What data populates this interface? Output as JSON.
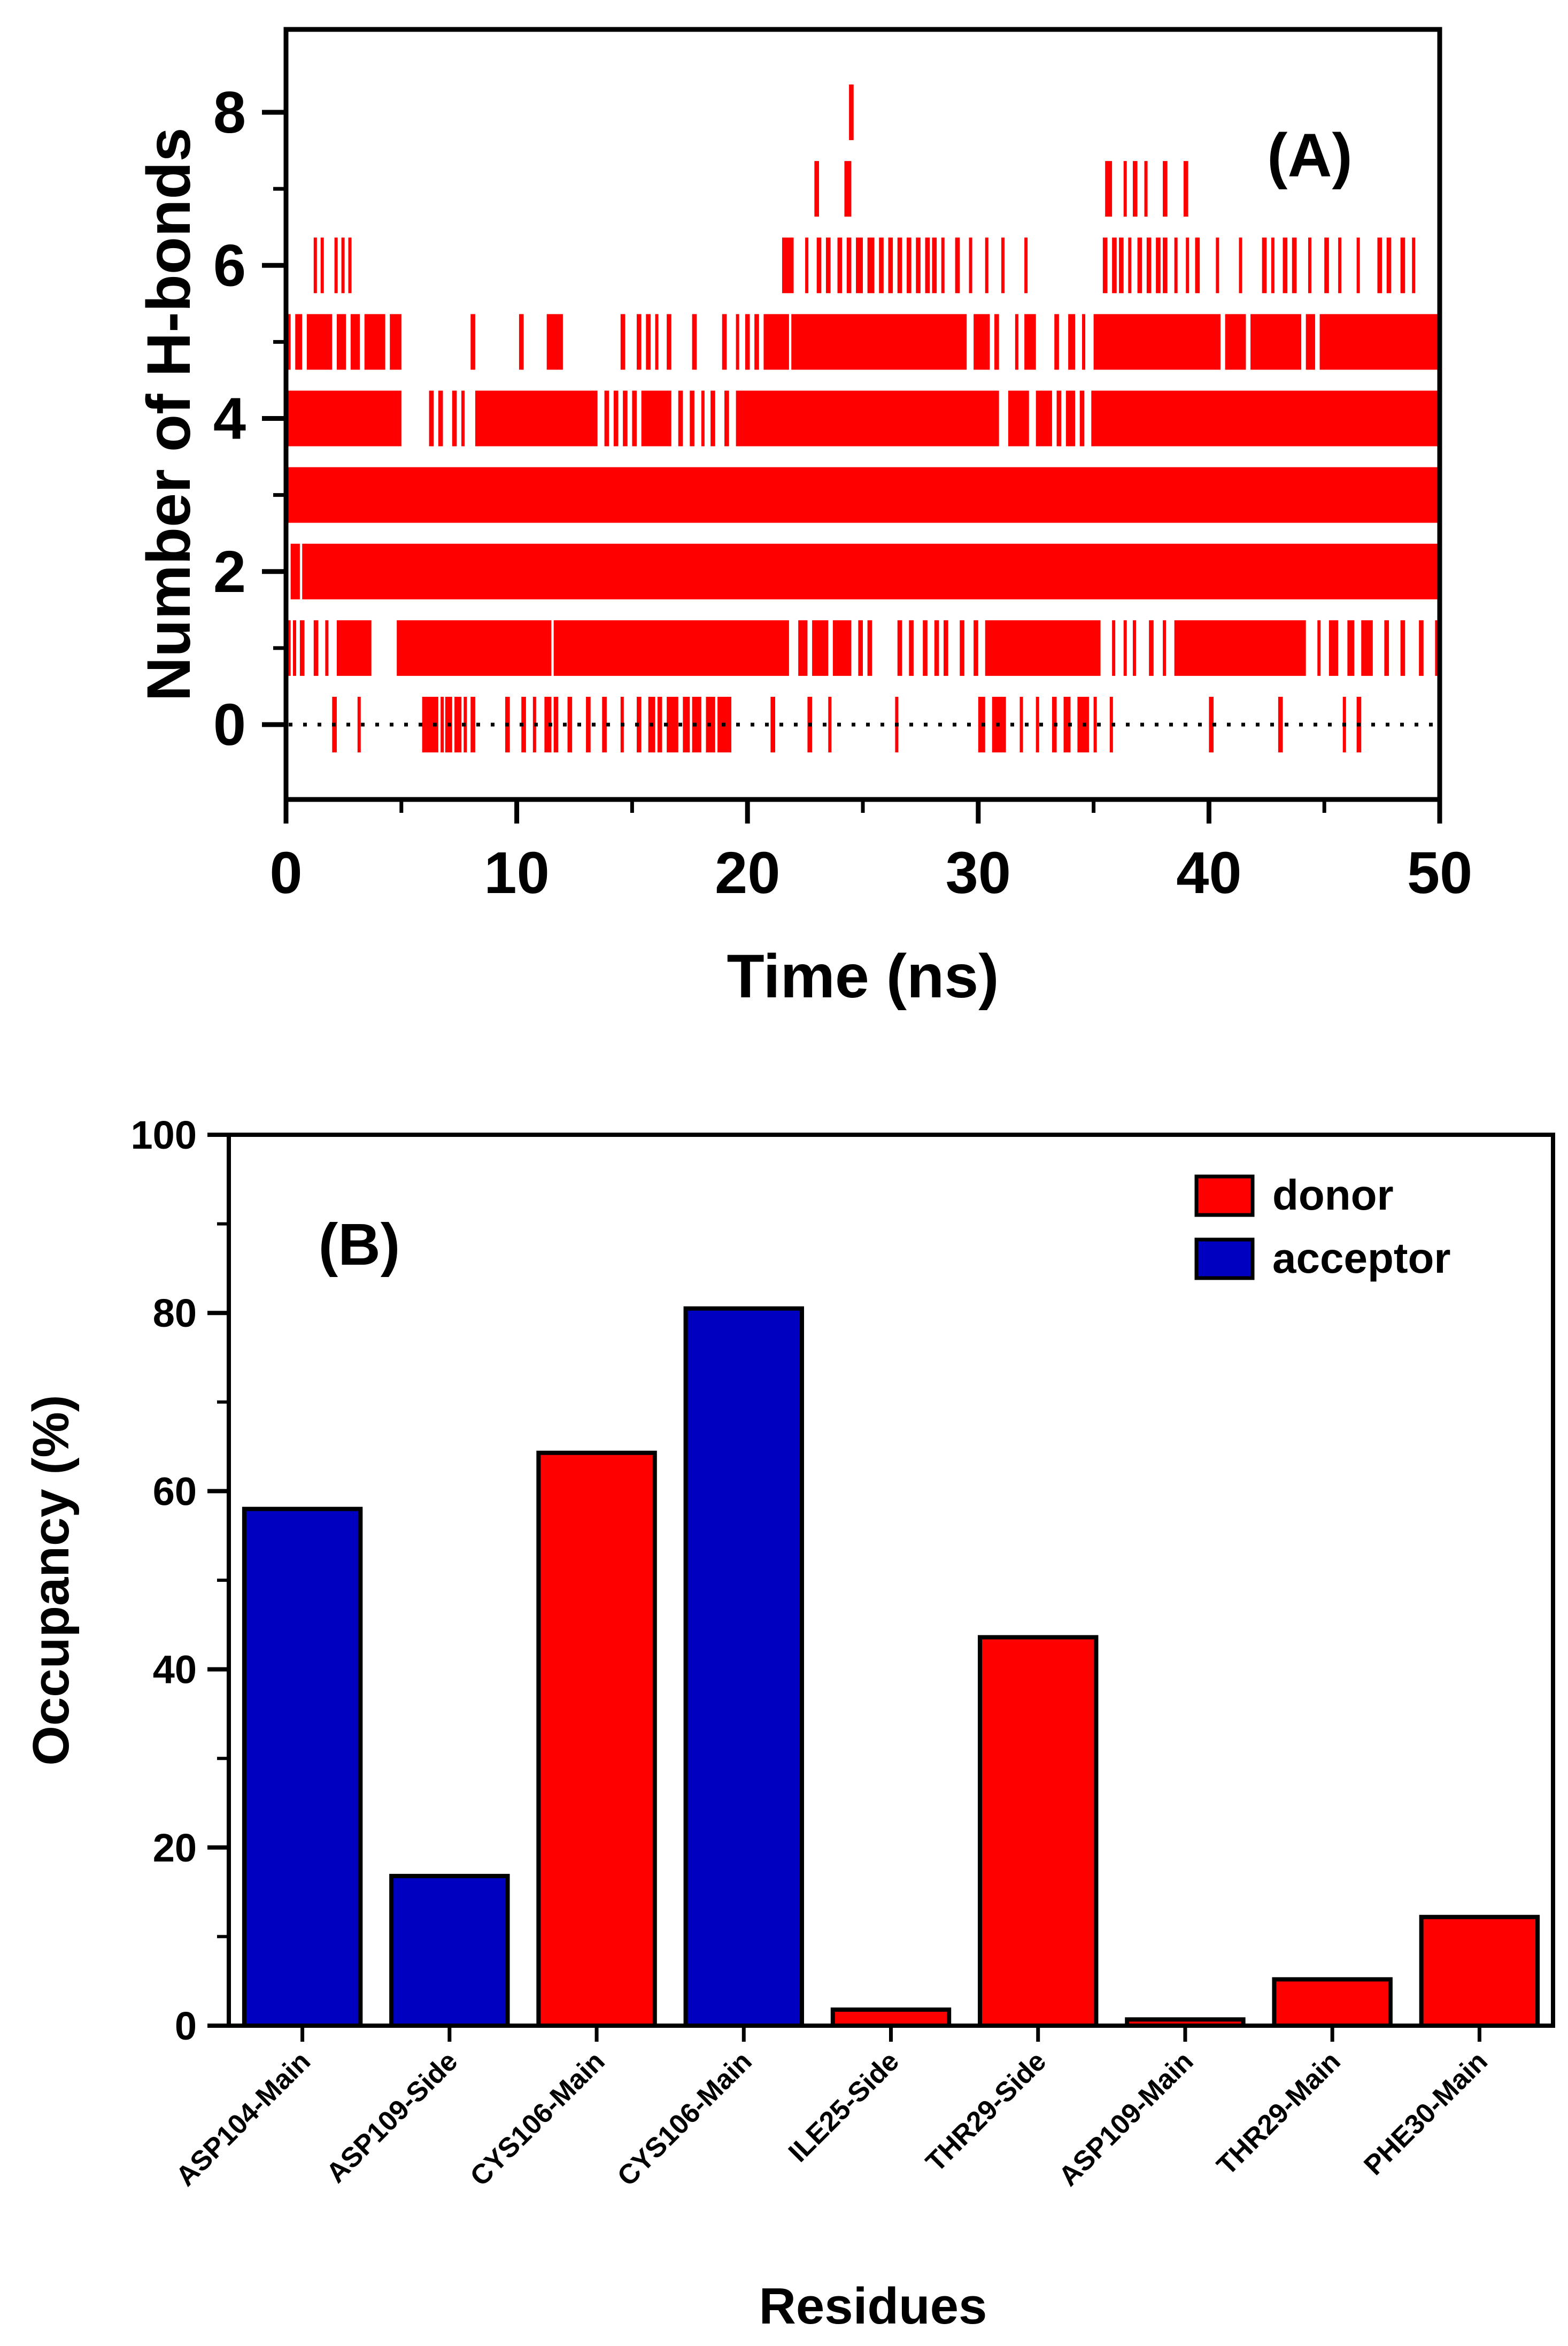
{
  "chart_data": [
    {
      "type": "scatter",
      "panel_label": "(A)",
      "xlabel": "Time (ns)",
      "ylabel": "Number of H-bonds",
      "xlim": [
        0,
        50
      ],
      "ylim": [
        -1,
        9
      ],
      "xticks": [
        0,
        10,
        20,
        30,
        40,
        50
      ],
      "yticks": [
        0,
        2,
        4,
        6,
        8
      ],
      "xtick_labels": [
        "0",
        "10",
        "20",
        "30",
        "40",
        "50"
      ],
      "ytick_labels": [
        "0",
        "2",
        "4",
        "6",
        "8"
      ],
      "marker": "vertical-dash",
      "color": "#ff0000",
      "reference_line": {
        "y": 0,
        "style": "dotted"
      },
      "series": [
        {
          "level": 0,
          "ranges": [
            [
              2.0,
              2.2
            ],
            [
              3.1,
              3.2
            ],
            [
              5.9,
              6.6
            ],
            [
              6.7,
              6.8
            ],
            [
              6.9,
              7.2
            ],
            [
              7.3,
              7.6
            ],
            [
              7.7,
              7.8
            ],
            [
              8.0,
              8.2
            ],
            [
              9.5,
              9.7
            ],
            [
              10.2,
              10.4
            ],
            [
              10.7,
              10.8
            ],
            [
              11.2,
              11.5
            ],
            [
              11.6,
              11.8
            ],
            [
              12.2,
              12.4
            ],
            [
              13.0,
              13.2
            ],
            [
              13.7,
              13.9
            ],
            [
              14.5,
              14.6
            ],
            [
              15.2,
              15.4
            ],
            [
              15.7,
              16.0
            ],
            [
              16.1,
              16.3
            ],
            [
              16.5,
              17.0
            ],
            [
              17.2,
              17.5
            ],
            [
              17.6,
              18.0
            ],
            [
              18.2,
              18.6
            ],
            [
              18.7,
              19.3
            ],
            [
              21.0,
              21.2
            ],
            [
              22.6,
              22.8
            ],
            [
              23.5,
              23.6
            ],
            [
              26.4,
              26.5
            ],
            [
              30.0,
              30.3
            ],
            [
              30.6,
              31.2
            ],
            [
              31.8,
              31.9
            ],
            [
              32.5,
              32.6
            ],
            [
              33.2,
              33.4
            ],
            [
              33.7,
              34.0
            ],
            [
              34.3,
              34.8
            ],
            [
              35.0,
              35.1
            ],
            [
              35.7,
              35.8
            ],
            [
              40.0,
              40.2
            ],
            [
              43.0,
              43.2
            ],
            [
              45.8,
              45.9
            ],
            [
              46.4,
              46.6
            ]
          ]
        },
        {
          "level": 1,
          "ranges": [
            [
              0.0,
              0.2
            ],
            [
              0.3,
              0.4
            ],
            [
              0.6,
              0.8
            ],
            [
              1.2,
              1.4
            ],
            [
              1.7,
              1.8
            ],
            [
              2.2,
              3.7
            ],
            [
              4.8,
              11.5
            ],
            [
              11.6,
              21.8
            ],
            [
              22.2,
              22.6
            ],
            [
              22.8,
              23.5
            ],
            [
              23.7,
              24.5
            ],
            [
              24.8,
              25.0
            ],
            [
              25.2,
              25.4
            ],
            [
              26.5,
              26.7
            ],
            [
              27.0,
              27.2
            ],
            [
              27.6,
              27.8
            ],
            [
              28.1,
              28.3
            ],
            [
              28.5,
              28.7
            ],
            [
              29.2,
              29.4
            ],
            [
              29.8,
              30.0
            ],
            [
              30.3,
              35.3
            ],
            [
              35.8,
              35.9
            ],
            [
              36.3,
              36.4
            ],
            [
              36.7,
              36.8
            ],
            [
              37.4,
              37.6
            ],
            [
              38.0,
              38.1
            ],
            [
              38.5,
              44.2
            ],
            [
              44.7,
              44.8
            ],
            [
              45.2,
              45.6
            ],
            [
              46.0,
              46.3
            ],
            [
              46.6,
              47.1
            ],
            [
              47.6,
              47.8
            ],
            [
              48.3,
              48.5
            ],
            [
              49.1,
              49.3
            ],
            [
              49.8,
              50.0
            ]
          ]
        },
        {
          "level": 2,
          "ranges": [
            [
              0.2,
              0.6
            ],
            [
              0.7,
              50.0
            ]
          ]
        },
        {
          "level": 3,
          "ranges": [
            [
              0.0,
              50.0
            ]
          ]
        },
        {
          "level": 4,
          "ranges": [
            [
              0.0,
              5.0
            ],
            [
              6.2,
              6.4
            ],
            [
              6.6,
              6.8
            ],
            [
              7.2,
              7.4
            ],
            [
              7.6,
              7.7
            ],
            [
              8.2,
              13.5
            ],
            [
              13.8,
              14.0
            ],
            [
              14.2,
              14.4
            ],
            [
              14.6,
              14.8
            ],
            [
              15.0,
              15.2
            ],
            [
              15.4,
              16.7
            ],
            [
              17.0,
              17.2
            ],
            [
              17.5,
              17.7
            ],
            [
              18.0,
              18.1
            ],
            [
              18.4,
              18.6
            ],
            [
              19.0,
              19.2
            ],
            [
              19.5,
              30.9
            ],
            [
              31.3,
              32.2
            ],
            [
              32.5,
              33.2
            ],
            [
              33.4,
              33.6
            ],
            [
              33.8,
              34.2
            ],
            [
              34.4,
              34.6
            ],
            [
              34.9,
              50.0
            ]
          ]
        },
        {
          "level": 5,
          "ranges": [
            [
              0.0,
              0.2
            ],
            [
              0.4,
              0.7
            ],
            [
              0.9,
              2.0
            ],
            [
              2.2,
              2.6
            ],
            [
              2.8,
              3.2
            ],
            [
              3.4,
              4.3
            ],
            [
              4.5,
              5.0
            ],
            [
              8.0,
              8.2
            ],
            [
              10.1,
              10.3
            ],
            [
              11.3,
              12.0
            ],
            [
              14.5,
              14.7
            ],
            [
              15.2,
              15.4
            ],
            [
              15.6,
              15.8
            ],
            [
              16.0,
              16.1
            ],
            [
              16.5,
              16.7
            ],
            [
              17.6,
              17.8
            ],
            [
              18.9,
              19.1
            ],
            [
              19.5,
              19.6
            ],
            [
              19.9,
              20.1
            ],
            [
              20.3,
              20.5
            ],
            [
              20.7,
              21.8
            ],
            [
              21.9,
              29.5
            ],
            [
              29.8,
              30.5
            ],
            [
              30.7,
              30.9
            ],
            [
              31.6,
              31.7
            ],
            [
              32.0,
              32.5
            ],
            [
              33.3,
              33.5
            ],
            [
              33.9,
              34.2
            ],
            [
              34.5,
              34.6
            ],
            [
              35.0,
              40.5
            ],
            [
              40.7,
              41.6
            ],
            [
              41.8,
              44.0
            ],
            [
              44.2,
              44.6
            ],
            [
              44.8,
              50.0
            ]
          ]
        },
        {
          "level": 6,
          "ranges": [
            [
              1.2,
              1.3
            ],
            [
              1.5,
              1.6
            ],
            [
              2.1,
              2.2
            ],
            [
              2.4,
              2.5
            ],
            [
              2.7,
              2.8
            ],
            [
              21.5,
              22.0
            ],
            [
              22.5,
              22.6
            ],
            [
              23.0,
              23.2
            ],
            [
              23.4,
              23.6
            ],
            [
              23.9,
              24.1
            ],
            [
              24.3,
              24.5
            ],
            [
              24.7,
              25.0
            ],
            [
              25.2,
              25.5
            ],
            [
              25.7,
              25.9
            ],
            [
              26.1,
              26.3
            ],
            [
              26.5,
              26.7
            ],
            [
              26.9,
              27.1
            ],
            [
              27.3,
              27.5
            ],
            [
              27.7,
              27.9
            ],
            [
              28.0,
              28.2
            ],
            [
              28.4,
              28.5
            ],
            [
              29.0,
              29.2
            ],
            [
              29.6,
              29.7
            ],
            [
              30.3,
              30.4
            ],
            [
              31.0,
              31.1
            ],
            [
              32.0,
              32.1
            ],
            [
              35.4,
              35.6
            ],
            [
              35.8,
              36.0
            ],
            [
              36.1,
              36.3
            ],
            [
              36.5,
              36.6
            ],
            [
              36.9,
              37.1
            ],
            [
              37.3,
              37.5
            ],
            [
              37.7,
              37.9
            ],
            [
              38.0,
              38.2
            ],
            [
              38.5,
              38.6
            ],
            [
              39.0,
              39.1
            ],
            [
              39.4,
              39.6
            ],
            [
              40.3,
              40.4
            ],
            [
              41.3,
              41.4
            ],
            [
              42.3,
              42.5
            ],
            [
              42.7,
              42.8
            ],
            [
              43.2,
              43.4
            ],
            [
              43.6,
              43.8
            ],
            [
              44.3,
              44.4
            ],
            [
              45.0,
              45.2
            ],
            [
              45.6,
              45.7
            ],
            [
              46.4,
              46.5
            ],
            [
              47.3,
              47.5
            ],
            [
              47.7,
              47.9
            ],
            [
              48.3,
              48.5
            ],
            [
              48.8,
              48.9
            ]
          ]
        },
        {
          "level": 7,
          "ranges": [
            [
              22.9,
              23.1
            ],
            [
              24.2,
              24.5
            ],
            [
              35.5,
              35.8
            ],
            [
              36.3,
              36.4
            ],
            [
              36.7,
              36.9
            ],
            [
              37.2,
              37.3
            ],
            [
              38.0,
              38.2
            ],
            [
              38.9,
              39.1
            ]
          ]
        },
        {
          "level": 8,
          "ranges": [
            [
              24.4,
              24.6
            ]
          ]
        }
      ]
    },
    {
      "type": "bar",
      "panel_label": "(B)",
      "xlabel": "Residues",
      "ylabel": "Occupancy (%)",
      "ylim": [
        0,
        100
      ],
      "yticks": [
        0,
        20,
        40,
        60,
        80,
        100
      ],
      "ytick_labels": [
        "0",
        "20",
        "40",
        "60",
        "80",
        "100"
      ],
      "categories": [
        "ASP104-Main",
        "ASP109-Side",
        "CYS106-Main",
        "CYS106-Main",
        "ILE25-Side",
        "THR29-Side",
        "ASP109-Main",
        "THR29-Main",
        "PHE30-Main"
      ],
      "values": [
        58,
        16.8,
        64.3,
        80.5,
        1.8,
        43.6,
        0.7,
        5.2,
        12.2
      ],
      "series_of_bar": [
        "acceptor",
        "acceptor",
        "donor",
        "acceptor",
        "donor",
        "donor",
        "donor",
        "donor",
        "donor"
      ],
      "legend": [
        {
          "name": "donor",
          "color": "#ff0000"
        },
        {
          "name": "acceptor",
          "color": "#0000c0"
        }
      ],
      "legend_position": "top-right"
    }
  ]
}
